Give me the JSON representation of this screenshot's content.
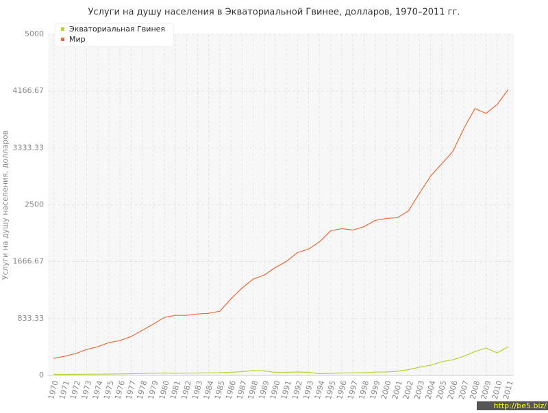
{
  "chart_data": {
    "type": "line",
    "title": "Услуги на душу населения в Экваториальной Гвинее, долларов, 1970–2011 гг.",
    "y_label": "Услуги на душу населения, долларов",
    "watermark": "http://be5.biz/",
    "categories": [
      "1970",
      "1971",
      "1972",
      "1973",
      "1974",
      "1975",
      "1976",
      "1977",
      "1978",
      "1979",
      "1980",
      "1981",
      "1982",
      "1983",
      "1984",
      "1985",
      "1986",
      "1987",
      "1988",
      "1989",
      "1990",
      "1991",
      "1992",
      "1993",
      "1994",
      "1995",
      "1996",
      "1997",
      "1998",
      "1999",
      "2000",
      "2001",
      "2002",
      "2003",
      "2004",
      "2005",
      "2006",
      "2007",
      "2008",
      "2009",
      "2010",
      "2011"
    ],
    "series": [
      {
        "name": "Экваториальная Гвинея",
        "color": "#b5d334",
        "values": [
          15,
          15,
          16,
          17,
          18,
          20,
          22,
          25,
          28,
          32,
          35,
          32,
          33,
          35,
          38,
          40,
          45,
          55,
          70,
          65,
          45,
          45,
          50,
          45,
          25,
          30,
          35,
          38,
          40,
          48,
          50,
          60,
          85,
          120,
          150,
          200,
          230,
          280,
          350,
          400,
          330,
          420
        ]
      },
      {
        "name": "Мир",
        "color": "#e8693a",
        "values": [
          250,
          280,
          320,
          380,
          420,
          480,
          510,
          570,
          660,
          750,
          850,
          880,
          880,
          900,
          910,
          940,
          1120,
          1280,
          1410,
          1470,
          1580,
          1670,
          1800,
          1850,
          1960,
          2120,
          2150,
          2130,
          2180,
          2270,
          2300,
          2310,
          2410,
          2670,
          2920,
          3100,
          3280,
          3620,
          3910,
          3840,
          3970,
          4190
        ]
      }
    ],
    "ylim": [
      0,
      5000
    ],
    "yticks": [
      0,
      833.33,
      1666.67,
      2500,
      3333.33,
      4166.67,
      5000
    ],
    "grid": true
  }
}
